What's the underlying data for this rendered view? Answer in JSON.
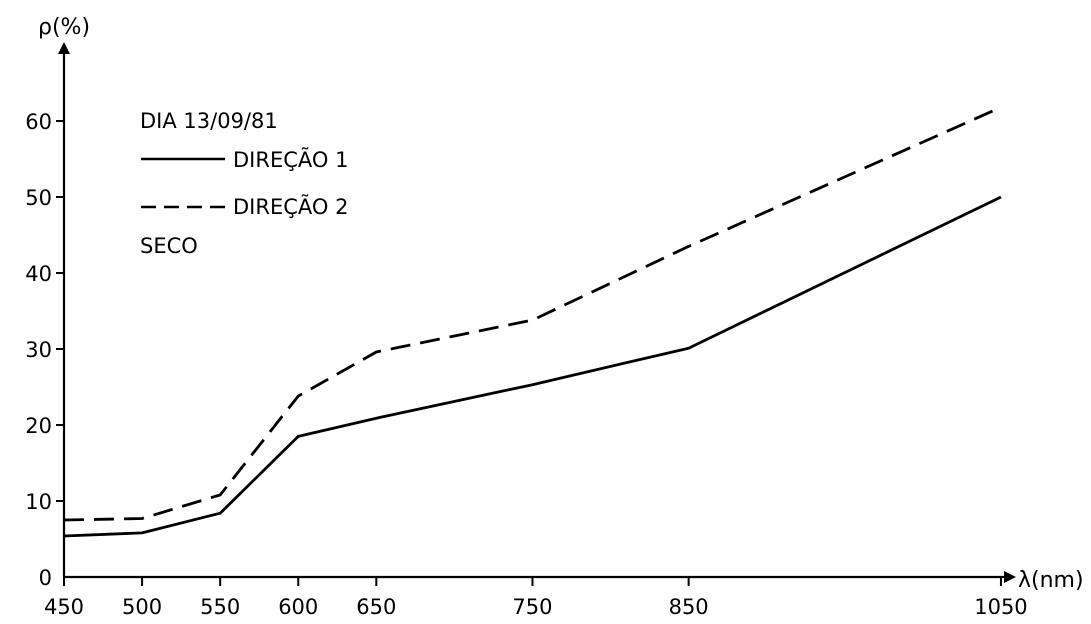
{
  "chart_data": {
    "type": "line",
    "ylabel": "ρ(%)",
    "xlabel": "λ(nm)",
    "x": [
      450,
      500,
      550,
      600,
      650,
      750,
      850,
      1050
    ],
    "x_tick_labels": [
      "450",
      "500",
      "550",
      "600",
      "650",
      "750",
      "850",
      "1050"
    ],
    "y_ticks": [
      0,
      10,
      20,
      30,
      40,
      50,
      60
    ],
    "y_tick_labels": [
      "0",
      "10",
      "20",
      "30",
      "40",
      "50",
      "60"
    ],
    "xlim": [
      450,
      1050
    ],
    "ylim": [
      0,
      65
    ],
    "grid": false,
    "legend_title": "DIA 13/09/81",
    "legend_note": "SECO",
    "legend_position": "top-left",
    "series": [
      {
        "name": "DIREÇÃO 1",
        "style": "solid",
        "color": "#000000",
        "points": [
          [
            450,
            5.4
          ],
          [
            500,
            5.8
          ],
          [
            550,
            8.4
          ],
          [
            600,
            18.5
          ],
          [
            650,
            20.9
          ],
          [
            750,
            25.3
          ],
          [
            850,
            30.1
          ],
          [
            1050,
            50.0
          ]
        ]
      },
      {
        "name": "DIREÇÃO 2",
        "style": "dashed",
        "color": "#000000",
        "points": [
          [
            450,
            7.5
          ],
          [
            500,
            7.7
          ],
          [
            550,
            10.8
          ],
          [
            600,
            23.8
          ],
          [
            650,
            29.6
          ],
          [
            750,
            33.8
          ],
          [
            850,
            43.5
          ],
          [
            1050,
            61.8
          ]
        ]
      }
    ]
  }
}
